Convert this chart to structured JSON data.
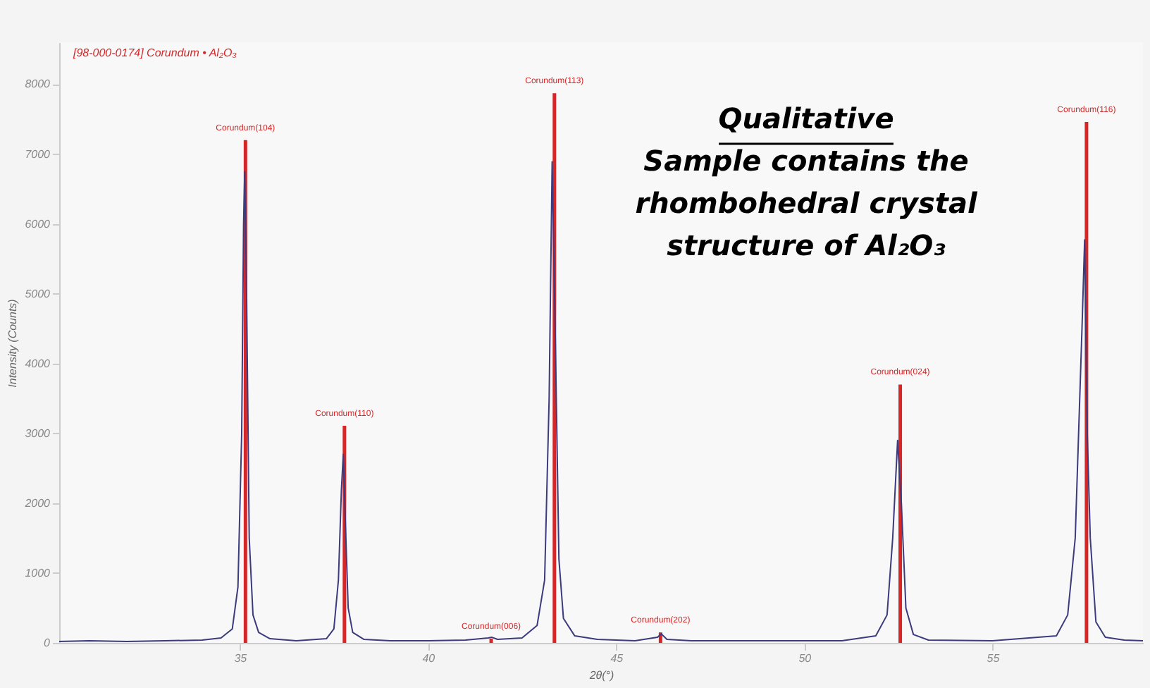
{
  "chart_data": {
    "type": "line",
    "xlabel": "2θ(°)",
    "ylabel": "Intensity (Counts)",
    "xlim": [
      30.2,
      59.0
    ],
    "xticks": [
      35,
      40,
      45,
      50,
      55
    ],
    "ylim": [
      0,
      8600
    ],
    "yticks": [
      0,
      1000,
      2000,
      3000,
      4000,
      5000,
      6000,
      7000,
      8000
    ],
    "grid": false,
    "annotations": [
      "Qualitative",
      "Sample contains the rhombohedral crystal structure of Al₂O₃"
    ],
    "series": [
      {
        "color": "#3b3b7d",
        "x": [
          30.2,
          31,
          32,
          33,
          34,
          34.5,
          34.8,
          34.95,
          35.05,
          35.1,
          35.13,
          35.18,
          35.25,
          35.35,
          35.5,
          35.8,
          36.5,
          37.3,
          37.5,
          37.62,
          37.7,
          37.75,
          37.8,
          37.88,
          38.0,
          38.3,
          39,
          40,
          41,
          41.6,
          41.7,
          41.85,
          42.5,
          42.9,
          43.1,
          43.22,
          43.3,
          43.38,
          43.48,
          43.6,
          43.9,
          44.5,
          45.5,
          46.1,
          46.2,
          46.35,
          47,
          49,
          51,
          51.9,
          52.2,
          52.35,
          52.48,
          52.58,
          52.7,
          52.9,
          53.3,
          55,
          56.7,
          57.0,
          57.2,
          57.38,
          57.45,
          57.52,
          57.6,
          57.75,
          58.0,
          58.5,
          59.0
        ],
        "values": [
          20,
          30,
          20,
          30,
          40,
          70,
          200,
          800,
          3000,
          6000,
          6750,
          5000,
          1500,
          400,
          150,
          60,
          30,
          60,
          200,
          900,
          2200,
          2700,
          1800,
          500,
          150,
          50,
          30,
          30,
          40,
          70,
          80,
          50,
          70,
          250,
          900,
          3500,
          6890,
          4500,
          1200,
          350,
          100,
          50,
          30,
          80,
          130,
          50,
          30,
          30,
          30,
          100,
          400,
          1500,
          2900,
          2000,
          500,
          120,
          40,
          30,
          100,
          400,
          1500,
          4500,
          5770,
          3000,
          1500,
          300,
          80,
          40,
          30
        ]
      },
      {
        "type": "bar",
        "name": "[98-000-0174] Corundum • Al₂O₃",
        "color": "#d62728",
        "x": [
          35.15,
          37.78,
          41.68,
          43.36,
          46.18,
          52.55,
          57.5
        ],
        "values": [
          7200,
          3110,
          60,
          7870,
          150,
          3700,
          7460
        ],
        "value_labels": [
          "Corundum(104)",
          "Corundum(110)",
          "Corundum(006)",
          "Corundum(113)",
          "Corundum(202)",
          "Corundum(024)",
          "Corundum(116)"
        ]
      }
    ]
  }
}
